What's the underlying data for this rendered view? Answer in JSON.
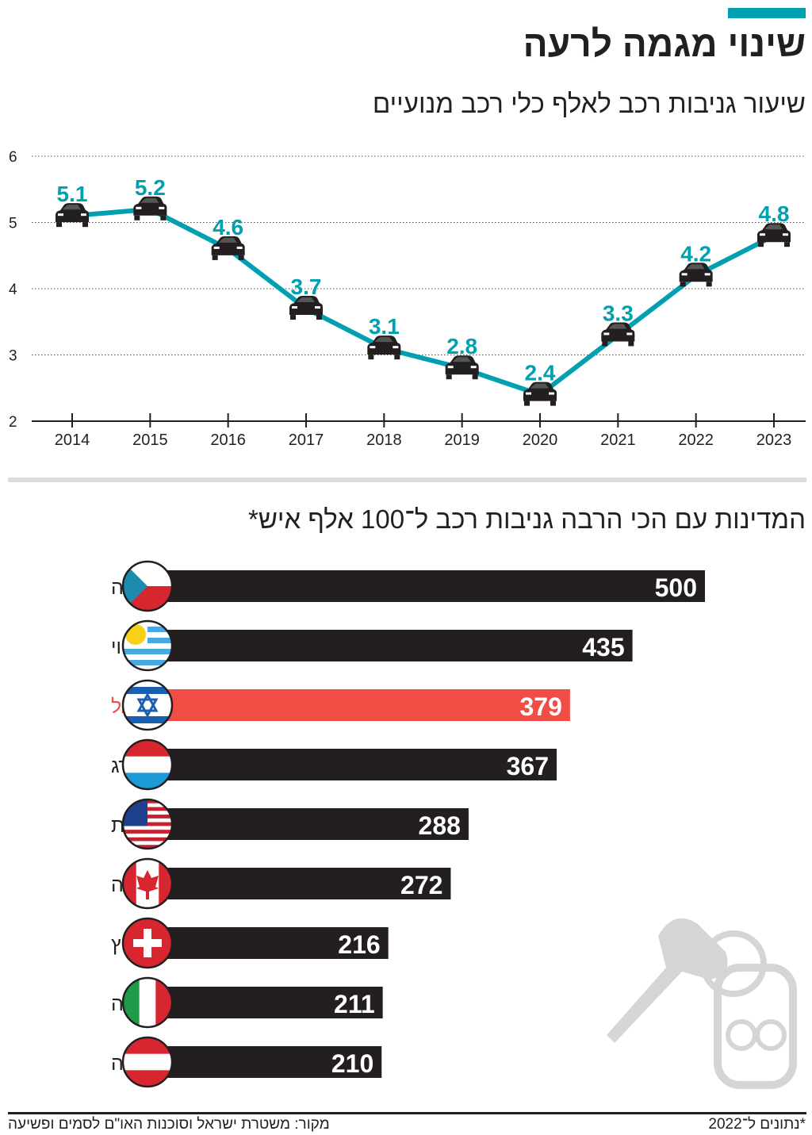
{
  "header": {
    "title": "שינוי מגמה לרעה",
    "accent_color": "#00a0b0"
  },
  "chart_data": [
    {
      "type": "line",
      "title": "שיעור גניבות רכב לאלף כלי רכב מנועיים",
      "x": [
        2014,
        2015,
        2016,
        2017,
        2018,
        2019,
        2020,
        2021,
        2022,
        2023
      ],
      "x_tick_labels": [
        "2014",
        "2015",
        "2016",
        "2017",
        "2018",
        "2019",
        "2020",
        "2021",
        "2022",
        "2023"
      ],
      "values": [
        5.1,
        5.2,
        4.6,
        3.7,
        3.1,
        2.8,
        2.4,
        3.3,
        4.2,
        4.8
      ],
      "data_labels": [
        "5.1",
        "5.2",
        "4.6",
        "3.7",
        "3.1",
        "2.8",
        "2.4",
        "3.3",
        "4.2",
        "4.8"
      ],
      "ylim": [
        2,
        6
      ],
      "y_ticks": [
        "2",
        "3",
        "4",
        "5",
        "6"
      ],
      "grid": "horizontal dotted",
      "line_color": "#00a0b0",
      "marker_icon": "car-icon"
    },
    {
      "type": "bar",
      "orientation": "horizontal",
      "title": "המדינות עם הכי הרבה גניבות רכב ל־100 אלף איש*",
      "categories": [
        "צ׳ילה",
        "אורוגאווי",
        "ישראל",
        "לוקסמבורג",
        "ארצות הברית",
        "קנדה",
        "שוויץ",
        "איטליה",
        "אוסטריה"
      ],
      "flags": [
        "chile-flag-icon",
        "uruguay-flag-icon",
        "israel-flag-icon",
        "luxembourg-flag-icon",
        "usa-flag-icon",
        "canada-flag-icon",
        "switzerland-flag-icon",
        "italy-flag-icon",
        "austria-flag-icon"
      ],
      "values": [
        500,
        435,
        379,
        367,
        288,
        272,
        216,
        211,
        210
      ],
      "data_labels": [
        "500",
        "435",
        "379",
        "367",
        "288",
        "272",
        "216",
        "211",
        "210"
      ],
      "bar_color": "#231f20",
      "highlight_category": "ישראל",
      "highlight_color": "#f04e45"
    }
  ],
  "footer": {
    "source": "מקור: משטרת ישראל וסוכנות האו\"ם לסמים ופשיעה",
    "note": "*נתונים ל־2022"
  }
}
